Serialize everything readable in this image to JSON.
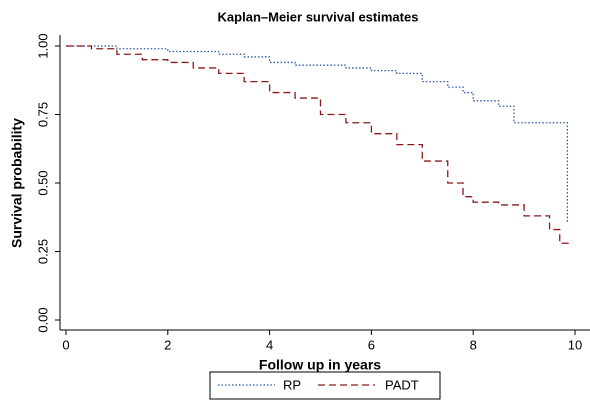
{
  "chart_data": {
    "type": "step",
    "title": "Kaplan–Meier survival estimates",
    "x_label": "Follow up in years",
    "y_label": "Survival probability",
    "xlim": [
      0,
      10
    ],
    "ylim": [
      0,
      1
    ],
    "xticks": [
      0,
      2,
      4,
      6,
      8,
      10
    ],
    "yticks": [
      {
        "value": 0,
        "label": "0.00"
      },
      {
        "value": 0.25,
        "label": "0.25"
      },
      {
        "value": 0.5,
        "label": "0.50"
      },
      {
        "value": 0.75,
        "label": "0.75"
      },
      {
        "value": 1,
        "label": "1.00"
      }
    ],
    "series": [
      {
        "name": "RP",
        "color": "#2a56a6",
        "dash": "dotted",
        "x": [
          0,
          1,
          2,
          3,
          3.5,
          4,
          4.5,
          5.5,
          6,
          6.5,
          7,
          7.5,
          7.8,
          8,
          8.5,
          8.8,
          9.85,
          9.88
        ],
        "values": [
          1,
          0.99,
          0.98,
          0.97,
          0.96,
          0.94,
          0.93,
          0.92,
          0.91,
          0.9,
          0.87,
          0.85,
          0.83,
          0.8,
          0.78,
          0.72,
          0.36,
          0.36
        ]
      },
      {
        "name": "PADT",
        "color": "#8b1a1a",
        "dash": "dashed",
        "x": [
          0,
          0.5,
          1,
          1.5,
          2,
          2.5,
          3,
          3.5,
          4,
          4.5,
          5,
          5.5,
          6,
          6.5,
          7,
          7.5,
          7.8,
          8,
          8.5,
          9,
          9.5,
          9.7,
          9.9
        ],
        "values": [
          1,
          0.99,
          0.97,
          0.95,
          0.94,
          0.92,
          0.9,
          0.87,
          0.83,
          0.81,
          0.75,
          0.72,
          0.68,
          0.64,
          0.58,
          0.5,
          0.45,
          0.43,
          0.42,
          0.38,
          0.33,
          0.28,
          0.28
        ]
      }
    ]
  }
}
